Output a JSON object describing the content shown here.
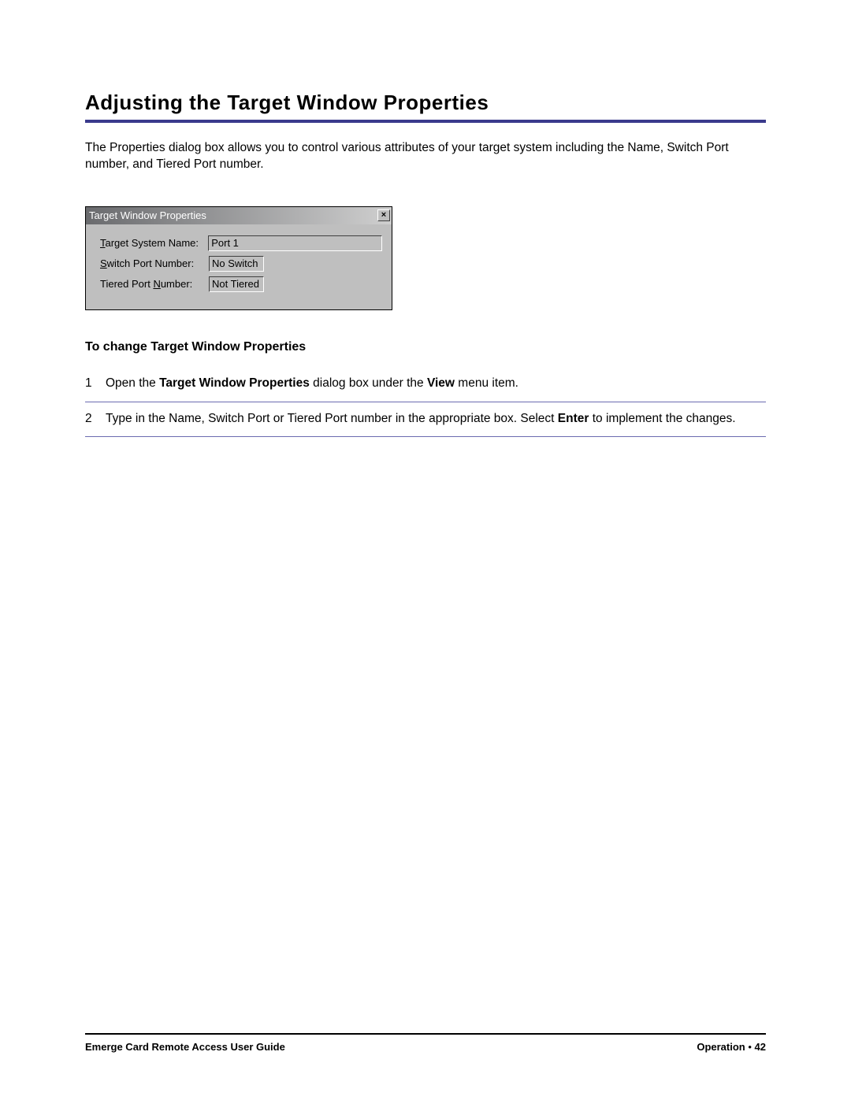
{
  "heading": "Adjusting the Target Window Properties",
  "intro": "The Properties dialog box allows you to control various attributes of your target system including the Name, Switch Port number, and Tiered Port number.",
  "dialog": {
    "title": "Target Window Properties",
    "close": "×",
    "rows": [
      {
        "label_pre": "",
        "label_u": "T",
        "label_post": "arget System Name:",
        "value": "Port 1",
        "wide": true
      },
      {
        "label_pre": "",
        "label_u": "S",
        "label_post": "witch Port Number:",
        "value": "No Switch",
        "wide": false
      },
      {
        "label_pre": "Tiered Port ",
        "label_u": "N",
        "label_post": "umber:",
        "value": "Not Tiered",
        "wide": false
      }
    ]
  },
  "sub_heading": "To change Target Window Properties",
  "steps": [
    {
      "num": "1",
      "segments": [
        {
          "t": "Open the ",
          "b": false
        },
        {
          "t": "Target Window Properties",
          "b": true
        },
        {
          "t": " dialog box under the ",
          "b": false
        },
        {
          "t": "View",
          "b": true
        },
        {
          "t": " menu item.",
          "b": false
        }
      ]
    },
    {
      "num": "2",
      "segments": [
        {
          "t": "Type in the Name, Switch Port or Tiered Port number in the appropriate box. Select ",
          "b": false
        },
        {
          "t": "Enter",
          "b": true
        },
        {
          "t": " to implement the changes.",
          "b": false
        }
      ]
    }
  ],
  "footer": {
    "left": "Emerge Card Remote Access User Guide",
    "right_section": "Operation",
    "right_sep": " • ",
    "right_page": "42"
  },
  "colors": {
    "rule": "#3a3a8c",
    "step_divider": "#6b6bb0",
    "dialog_bg": "#bfbfbf",
    "titlebar_from": "#6a6b6e",
    "titlebar_to": "#cfcfcf"
  }
}
